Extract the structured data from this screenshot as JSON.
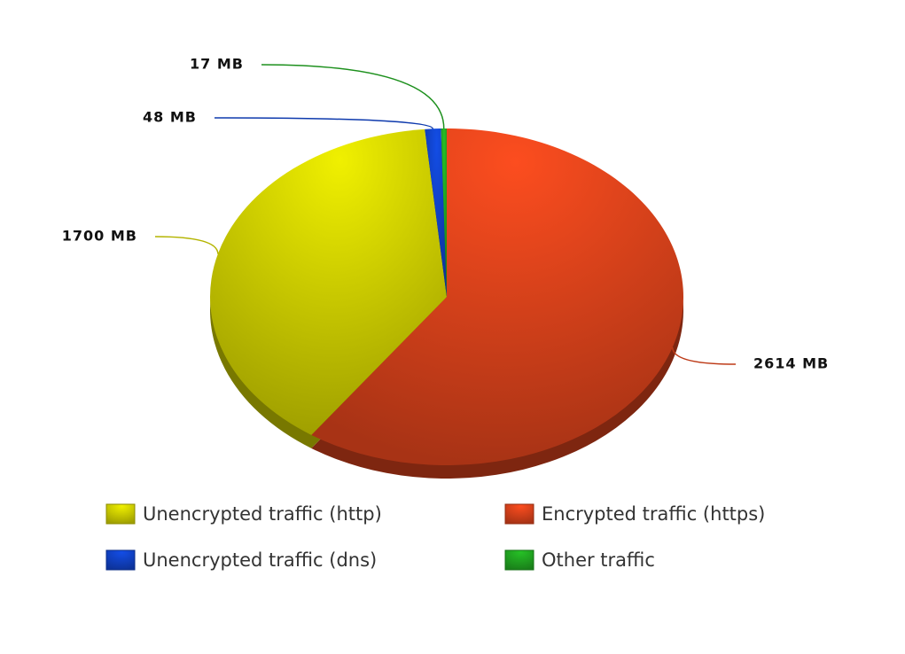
{
  "chart_data": {
    "type": "pie",
    "categories": [
      "Encrypted traffic (https)",
      "Unencrypted traffic (http)",
      "Unencrypted traffic (dns)",
      "Other traffic"
    ],
    "values": [
      2614,
      1700,
      48,
      17
    ],
    "value_labels": [
      "2614 MB",
      "1700 MB",
      "48 MB",
      "17 MB"
    ],
    "colors": [
      "#d2401a",
      "#c8c800",
      "#1040c0",
      "#20a020"
    ]
  }
}
